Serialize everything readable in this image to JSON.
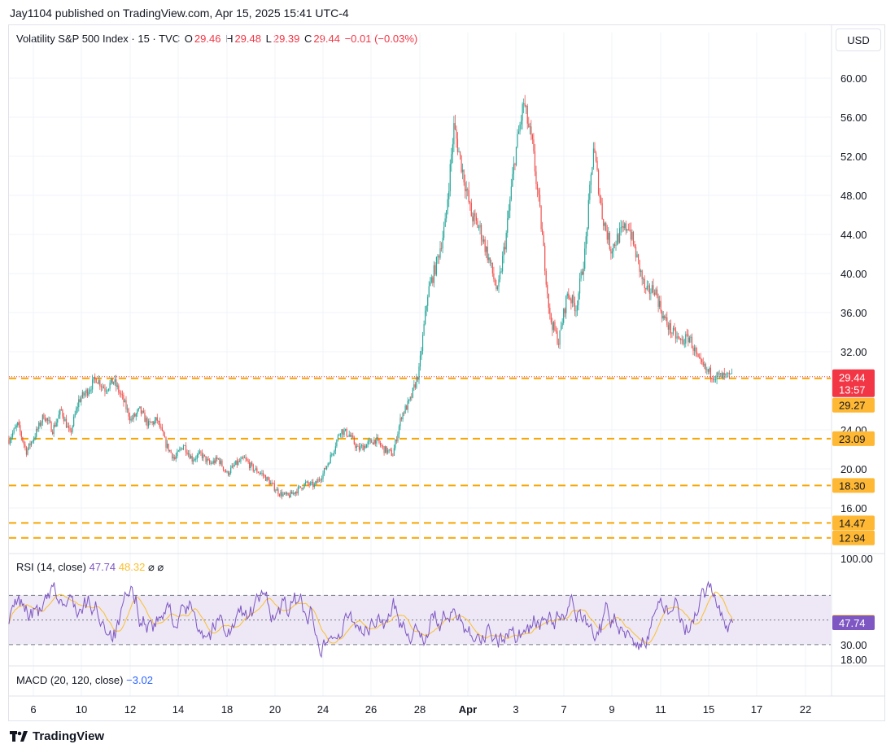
{
  "publisher_line": "Jay1104 published on TradingView.com, Apr 15, 2025 15:41 UTC-4",
  "legend": {
    "symbol": "Volatility S&P 500 Index · 15 · TVC",
    "o_label": "O",
    "o_value": "29.46",
    "h_label": "H",
    "h_value": "29.48",
    "l_label": "L",
    "l_value": "29.39",
    "c_label": "C",
    "c_value": "29.44",
    "change": "−0.01 (−0.03%)"
  },
  "currency_button": "USD",
  "rsi_legend": {
    "label": "RSI (14, close)",
    "rsi_value": "47.74",
    "ma_value": "48.32",
    "glyph1": "⌀",
    "glyph2": "⌀"
  },
  "macd_legend": {
    "label": "MACD (20, 120, close)",
    "value": "−3.02"
  },
  "footer": {
    "brand": "TradingView"
  },
  "colors": {
    "up": "#26a69a",
    "down": "#ef5350",
    "level": "#f7a600",
    "rsi_line": "#7e57c2",
    "rsi_ma": "#fbc02d",
    "rsi_band": "#ede7f6",
    "price_badge": "#f23645"
  },
  "chart_data": [
    {
      "type": "candlestick",
      "title": "Volatility S&P 500 Index · 15 · TVC",
      "x_ticks": [
        "6",
        "10",
        "12",
        "14",
        "18",
        "20",
        "24",
        "26",
        "28",
        "Apr",
        "3",
        "7",
        "9",
        "11",
        "15",
        "17",
        "22"
      ],
      "y_ticks": [
        "60.00",
        "56.00",
        "52.00",
        "48.00",
        "44.00",
        "40.00",
        "36.00",
        "32.00",
        "24.00",
        "20.00",
        "16.00"
      ],
      "ylim": [
        11.5,
        62
      ],
      "grid": true,
      "price_line": {
        "value": 29.44,
        "label": "29.44",
        "countdown": "13:57"
      },
      "horizontal_levels": [
        {
          "value": 29.27,
          "label": "29.27"
        },
        {
          "value": 23.09,
          "label": "23.09"
        },
        {
          "value": 18.3,
          "label": "18.30"
        },
        {
          "value": 14.47,
          "label": "14.47"
        },
        {
          "value": 12.94,
          "label": "12.94"
        }
      ],
      "series_path": [
        [
          6,
          23.0
        ],
        [
          7,
          24.5
        ],
        [
          8,
          21.8
        ],
        [
          9,
          23.5
        ],
        [
          10,
          25.5
        ],
        [
          11,
          24.0
        ],
        [
          12,
          26.0
        ],
        [
          13,
          23.5
        ],
        [
          14,
          27.0
        ],
        [
          15,
          28.0
        ],
        [
          16,
          29.3
        ],
        [
          17,
          28.2
        ],
        [
          18,
          29.0
        ],
        [
          19,
          27.2
        ],
        [
          20,
          25.0
        ],
        [
          21,
          26.0
        ],
        [
          22,
          24.5
        ],
        [
          23,
          25.0
        ],
        [
          24,
          22.5
        ],
        [
          25,
          21.0
        ],
        [
          26,
          22.5
        ],
        [
          27,
          21.0
        ],
        [
          28,
          21.5
        ],
        [
          29,
          20.5
        ],
        [
          30,
          21.0
        ],
        [
          31,
          19.5
        ],
        [
          32,
          20.5
        ],
        [
          33,
          21.0
        ],
        [
          34,
          20.0
        ],
        [
          35,
          19.5
        ],
        [
          36,
          18.5
        ],
        [
          37,
          17.5
        ],
        [
          38,
          17.2
        ],
        [
          39,
          17.8
        ],
        [
          40,
          18.5
        ],
        [
          41,
          18.3
        ],
        [
          42,
          19.5
        ],
        [
          43,
          21.5
        ],
        [
          44,
          24.0
        ],
        [
          45,
          23.5
        ],
        [
          46,
          22.0
        ],
        [
          47,
          22.5
        ],
        [
          48,
          23.0
        ],
        [
          49,
          22.0
        ],
        [
          50,
          21.5
        ],
        [
          51,
          25.5
        ],
        [
          52,
          27.0
        ],
        [
          53,
          30.0
        ],
        [
          54,
          38.0
        ],
        [
          55,
          41.0
        ],
        [
          56,
          45.0
        ],
        [
          57,
          55.0
        ],
        [
          58,
          50.5
        ],
        [
          59,
          46.0
        ],
        [
          60,
          44.5
        ],
        [
          61,
          41.5
        ],
        [
          62,
          38.0
        ],
        [
          63,
          44.0
        ],
        [
          64,
          52.0
        ],
        [
          65,
          57.5
        ],
        [
          66,
          53.0
        ],
        [
          67,
          45.0
        ],
        [
          68,
          35.5
        ],
        [
          69,
          33.0
        ],
        [
          70,
          38.0
        ],
        [
          71,
          36.5
        ],
        [
          72,
          42.0
        ],
        [
          73,
          53.0
        ],
        [
          74,
          46.0
        ],
        [
          75,
          42.5
        ],
        [
          76,
          44.0
        ],
        [
          77,
          45.0
        ],
        [
          78,
          41.5
        ],
        [
          79,
          38.0
        ],
        [
          80,
          38.5
        ],
        [
          81,
          35.5
        ],
        [
          82,
          34.0
        ],
        [
          83,
          33.0
        ],
        [
          84,
          33.5
        ],
        [
          85,
          31.0
        ],
        [
          86,
          30.0
        ],
        [
          87,
          29.5
        ],
        [
          88,
          29.4
        ],
        [
          89,
          29.44
        ]
      ]
    },
    {
      "type": "line",
      "title": "RSI (14, close)",
      "y_ticks": [
        "100.00",
        "30.00",
        "18.00"
      ],
      "band": [
        30,
        70
      ],
      "ylim": [
        14,
        104
      ],
      "series": [
        {
          "name": "RSI",
          "last": 47.74
        },
        {
          "name": "RSI MA",
          "last": 48.32
        }
      ]
    },
    {
      "type": "line",
      "title": "MACD (20, 120, close)",
      "series": [
        {
          "name": "MACD",
          "last": -3.02
        }
      ]
    }
  ]
}
